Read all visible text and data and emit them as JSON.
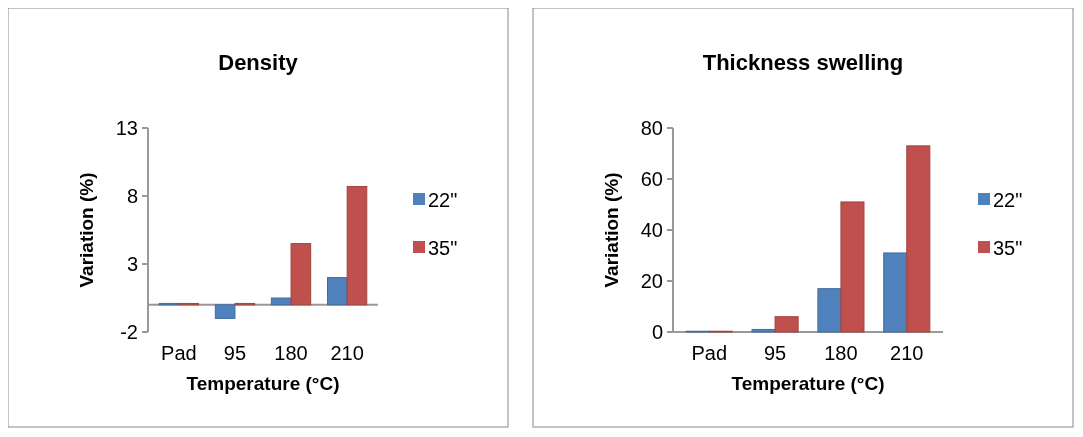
{
  "chart_data": [
    {
      "type": "bar",
      "title": "Density",
      "xlabel": "Temperature (°C)",
      "ylabel": "Variation (%)",
      "categories": [
        "Pad",
        "95",
        "180",
        "210"
      ],
      "series": [
        {
          "name": "22\"",
          "color": "#4f81bd",
          "values": [
            0.1,
            -1,
            0.5,
            2
          ]
        },
        {
          "name": "35\"",
          "color": "#c0504d",
          "values": [
            0.1,
            0.1,
            4.5,
            8.7
          ]
        }
      ],
      "ylim": [
        -2,
        13
      ],
      "yticks": [
        -2,
        3,
        8,
        13
      ],
      "grid": false,
      "legend": "right"
    },
    {
      "type": "bar",
      "title": "Thickness swelling",
      "xlabel": "Temperature (°C)",
      "ylabel": "Variation (%)",
      "categories": [
        "Pad",
        "95",
        "180",
        "210"
      ],
      "series": [
        {
          "name": "22\"",
          "color": "#4f81bd",
          "values": [
            0.3,
            1,
            17,
            31
          ]
        },
        {
          "name": "35\"",
          "color": "#c0504d",
          "values": [
            0.3,
            6,
            51,
            73
          ]
        }
      ],
      "ylim": [
        0,
        80
      ],
      "yticks": [
        0,
        20,
        40,
        60,
        80
      ],
      "grid": false,
      "legend": "right"
    }
  ]
}
